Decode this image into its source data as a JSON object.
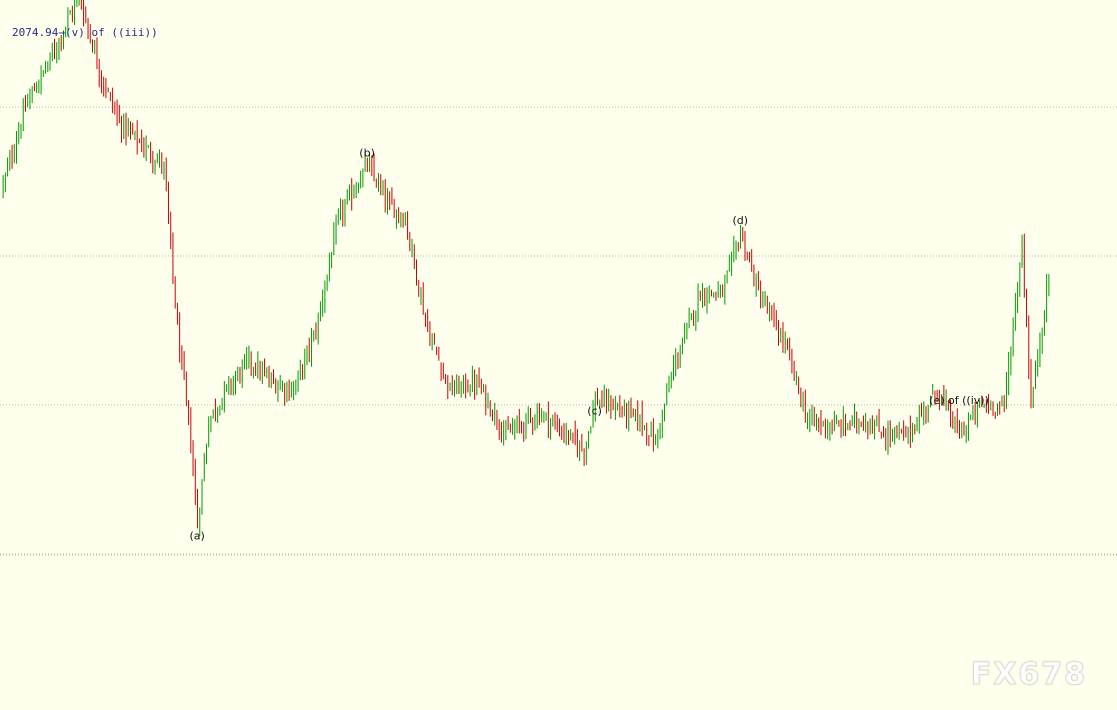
{
  "chart_data": {
    "type": "candlestick",
    "title": "",
    "xlabel": "",
    "ylabel": "",
    "ylim": [
      1995,
      2080
    ],
    "grid": true,
    "grid_y": [
      2060,
      2040,
      2020
    ],
    "colors": {
      "up": "#009900",
      "down": "#cc0000",
      "background": "#ffffee"
    },
    "price_label": {
      "value": "2074.94",
      "wave": "(v) of ((iii))"
    },
    "wave_points": [
      {
        "bar": 34,
        "value": 2075.0,
        "label": "(v) of ((iii))",
        "position": "top"
      },
      {
        "bar": 87,
        "value": 2003.8,
        "label": "(a)",
        "position": "bottom"
      },
      {
        "bar": 163,
        "value": 2052.3,
        "label": "(b)",
        "position": "top"
      },
      {
        "bar": 265,
        "value": 2020.6,
        "label": "(c)",
        "position": "bottom"
      },
      {
        "bar": 330,
        "value": 2043.2,
        "label": "(d)",
        "position": "top"
      },
      {
        "bar": 418,
        "value": 2022.0,
        "label": "(e) of ((iv))",
        "position": "bottom"
      },
      {
        "bar": 456,
        "value": 2041.5,
        "label": "",
        "position": "none"
      },
      {
        "bar": 468,
        "value": 2037.5,
        "label": "",
        "position": "none"
      }
    ],
    "bars_count": 469,
    "watermark": "FX678"
  }
}
